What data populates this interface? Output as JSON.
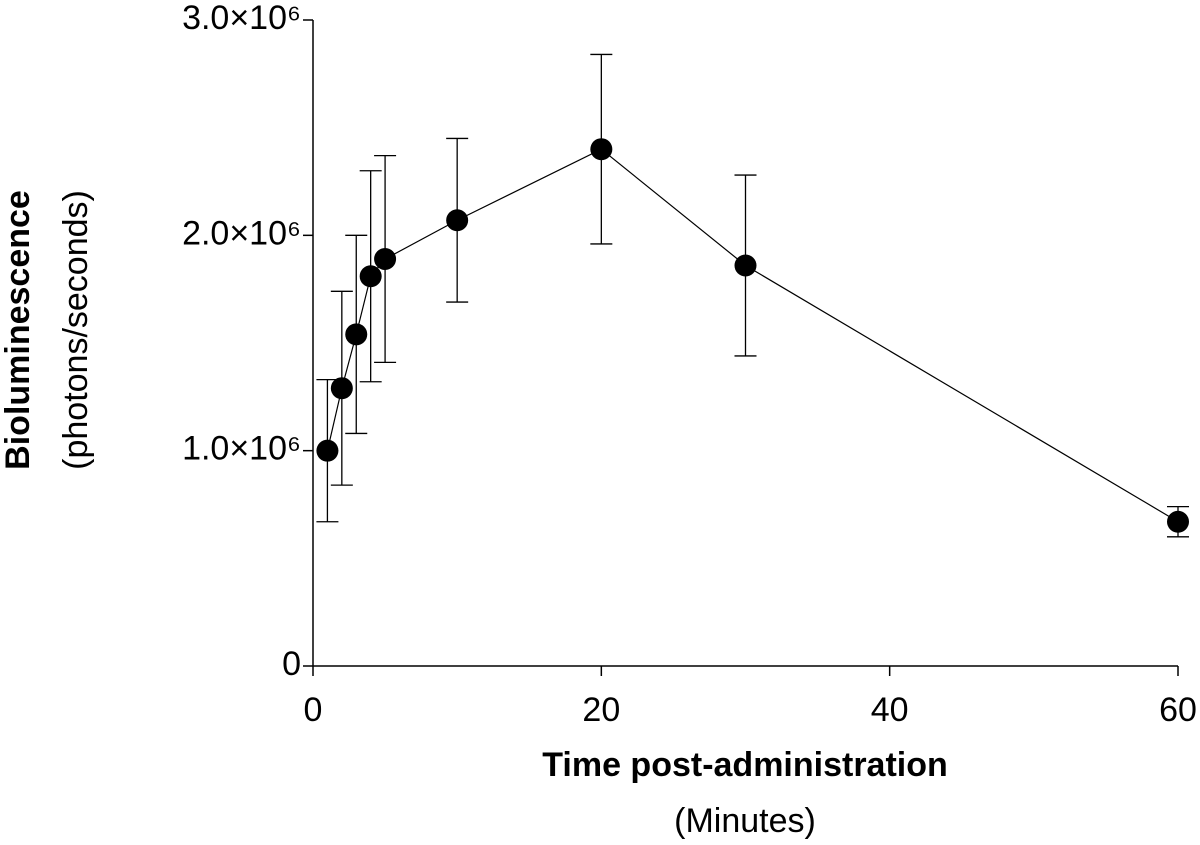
{
  "chart_data": {
    "type": "line",
    "xlabel": "Time post-administration",
    "xlabel_unit": "(Minutes)",
    "ylabel": "Bioluminescence",
    "ylabel_unit": "(photons/seconds)",
    "x": [
      1,
      2,
      3,
      4,
      5,
      10,
      20,
      30,
      60
    ],
    "values": [
      1000000,
      1290000,
      1540000,
      1810000,
      1890000,
      2070000,
      2400000,
      1860000,
      670000
    ],
    "errors": [
      330000,
      450000,
      460000,
      490000,
      480000,
      380000,
      440000,
      420000,
      70000
    ],
    "color": "#000000",
    "xlim": [
      0,
      60
    ],
    "xticks": [
      0,
      20,
      40,
      60
    ],
    "ylim": [
      0,
      3000000
    ],
    "yticks": [
      0,
      {
        "value": 1000000,
        "label": "1.0×10⁶"
      },
      {
        "value": 2000000,
        "label": "2.0×10⁶"
      },
      {
        "value": 3000000,
        "label": "3.0×10⁶"
      }
    ]
  }
}
